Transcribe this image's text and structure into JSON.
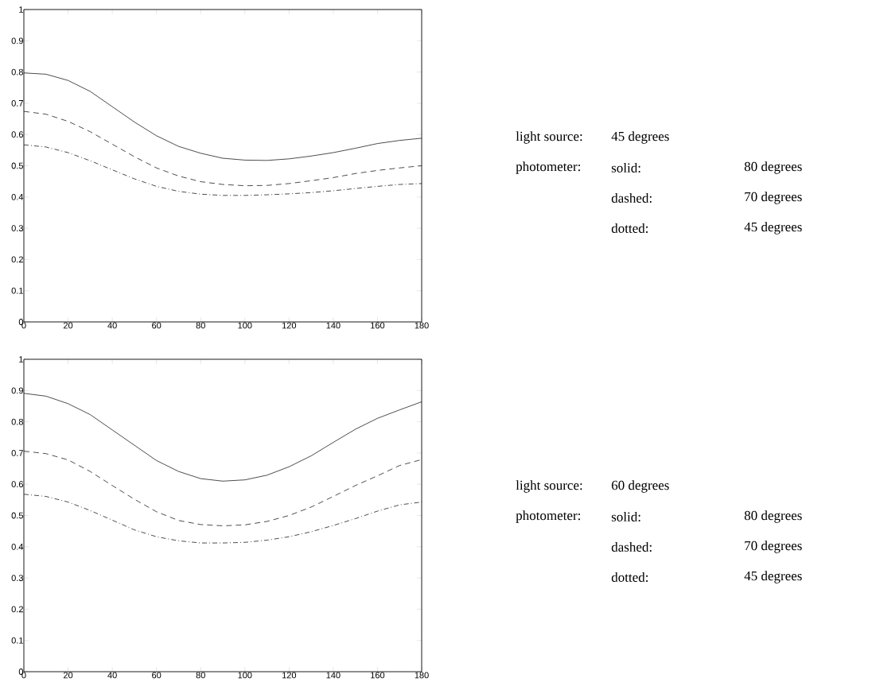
{
  "chart_data": [
    {
      "type": "line",
      "x": [
        0,
        10,
        20,
        30,
        40,
        50,
        60,
        70,
        80,
        90,
        100,
        110,
        120,
        130,
        140,
        150,
        160,
        170,
        180
      ],
      "series": [
        {
          "color": "#000000",
          "line_style": "solid",
          "values": [
            0.797,
            0.793,
            0.773,
            0.738,
            0.689,
            0.64,
            0.596,
            0.562,
            0.54,
            0.524,
            0.518,
            0.517,
            0.522,
            0.531,
            0.542,
            0.556,
            0.571,
            0.581,
            0.588
          ]
        },
        {
          "color": "#000000",
          "line_style": "dashed",
          "values": [
            0.674,
            0.665,
            0.642,
            0.609,
            0.569,
            0.529,
            0.493,
            0.467,
            0.449,
            0.44,
            0.436,
            0.437,
            0.443,
            0.452,
            0.462,
            0.475,
            0.485,
            0.493,
            0.5
          ]
        },
        {
          "color": "#000000",
          "line_style": "dotted",
          "values": [
            0.567,
            0.56,
            0.542,
            0.516,
            0.487,
            0.458,
            0.434,
            0.418,
            0.409,
            0.405,
            0.405,
            0.407,
            0.41,
            0.414,
            0.42,
            0.427,
            0.434,
            0.44,
            0.443
          ]
        }
      ],
      "xlim": [
        0,
        180
      ],
      "ylim": [
        0,
        1
      ],
      "xticks": [
        0,
        20,
        40,
        60,
        80,
        100,
        120,
        140,
        160,
        180
      ],
      "yticks": [
        0,
        0.1,
        0.2,
        0.3,
        0.4,
        0.5,
        0.6,
        0.7,
        0.8,
        0.9,
        1
      ],
      "annotations": [
        "light source:",
        "45 degrees",
        "photometer:",
        "solid:",
        "80 degrees",
        "dashed:",
        "70 degrees",
        "dotted:",
        "45 degrees"
      ]
    },
    {
      "type": "line",
      "x": [
        0,
        10,
        20,
        30,
        40,
        50,
        60,
        70,
        80,
        90,
        100,
        110,
        120,
        130,
        140,
        150,
        160,
        170,
        180
      ],
      "series": [
        {
          "color": "#000000",
          "line_style": "solid",
          "values": [
            0.891,
            0.882,
            0.858,
            0.823,
            0.774,
            0.725,
            0.676,
            0.641,
            0.618,
            0.61,
            0.614,
            0.629,
            0.656,
            0.691,
            0.734,
            0.776,
            0.811,
            0.838,
            0.864
          ]
        },
        {
          "color": "#000000",
          "line_style": "dashed",
          "values": [
            0.706,
            0.698,
            0.678,
            0.641,
            0.596,
            0.552,
            0.512,
            0.484,
            0.471,
            0.467,
            0.47,
            0.481,
            0.5,
            0.527,
            0.561,
            0.596,
            0.627,
            0.66,
            0.679
          ]
        },
        {
          "color": "#000000",
          "line_style": "dotted",
          "values": [
            0.568,
            0.561,
            0.543,
            0.516,
            0.485,
            0.454,
            0.432,
            0.419,
            0.412,
            0.412,
            0.414,
            0.421,
            0.432,
            0.448,
            0.468,
            0.49,
            0.514,
            0.534,
            0.543
          ]
        }
      ],
      "xlim": [
        0,
        180
      ],
      "ylim": [
        0,
        1
      ],
      "xticks": [
        0,
        20,
        40,
        60,
        80,
        100,
        120,
        140,
        160,
        180
      ],
      "yticks": [
        0,
        0.1,
        0.2,
        0.3,
        0.4,
        0.5,
        0.6,
        0.7,
        0.8,
        0.9,
        1
      ],
      "annotations": [
        "light source:",
        "60 degrees",
        "photometer:",
        "solid:",
        "80 degrees",
        "dashed:",
        "70 degrees",
        "dotted:",
        "45 degrees"
      ]
    }
  ]
}
